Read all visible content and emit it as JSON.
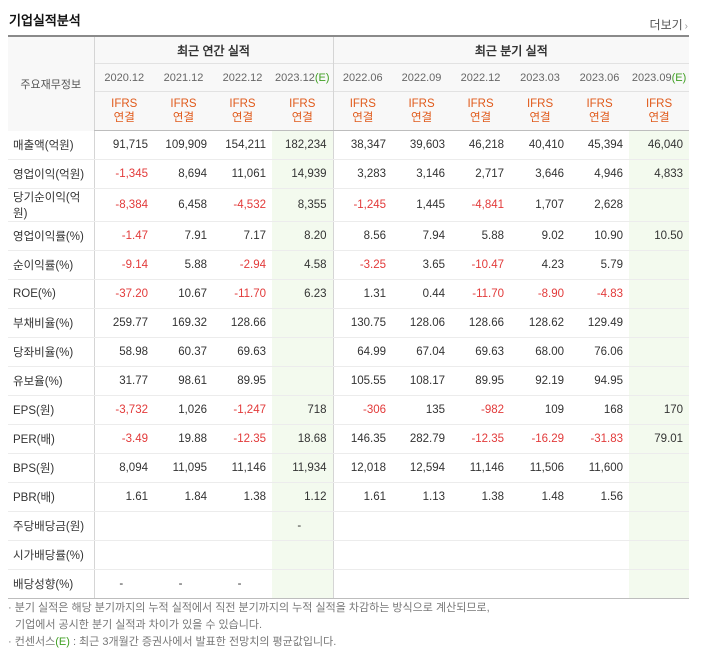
{
  "header": {
    "title": "기업실적분석",
    "more": "더보기"
  },
  "table": {
    "corner_label": "주요재무정보",
    "annual_label": "최근 연간 실적",
    "quarter_label": "최근 분기 실적",
    "estimate_mark": "(E)",
    "columns": [
      {
        "period": "2020.12",
        "std": "IFRS",
        "basis": "연결",
        "est": false
      },
      {
        "period": "2021.12",
        "std": "IFRS",
        "basis": "연결",
        "est": false
      },
      {
        "period": "2022.12",
        "std": "IFRS",
        "basis": "연결",
        "est": false
      },
      {
        "period": "2023.12",
        "std": "IFRS",
        "basis": "연결",
        "est": true
      },
      {
        "period": "2022.06",
        "std": "IFRS",
        "basis": "연결",
        "est": false
      },
      {
        "period": "2022.09",
        "std": "IFRS",
        "basis": "연결",
        "est": false
      },
      {
        "period": "2022.12",
        "std": "IFRS",
        "basis": "연결",
        "est": false
      },
      {
        "period": "2023.03",
        "std": "IFRS",
        "basis": "연결",
        "est": false
      },
      {
        "period": "2023.06",
        "std": "IFRS",
        "basis": "연결",
        "est": false
      },
      {
        "period": "2023.09",
        "std": "IFRS",
        "basis": "연결",
        "est": true
      }
    ],
    "rows": [
      {
        "label": "매출액(억원)",
        "values": [
          "91,715",
          "109,909",
          "154,211",
          "182,234",
          "38,347",
          "39,603",
          "46,218",
          "40,410",
          "45,394",
          "46,040"
        ]
      },
      {
        "label": "영업이익(억원)",
        "values": [
          "-1,345",
          "8,694",
          "11,061",
          "14,939",
          "3,283",
          "3,146",
          "2,717",
          "3,646",
          "4,946",
          "4,833"
        ]
      },
      {
        "label": "당기순이익(억원)",
        "values": [
          "-8,384",
          "6,458",
          "-4,532",
          "8,355",
          "-1,245",
          "1,445",
          "-4,841",
          "1,707",
          "2,628",
          ""
        ]
      },
      {
        "label": "영업이익률(%)",
        "values": [
          "-1.47",
          "7.91",
          "7.17",
          "8.20",
          "8.56",
          "7.94",
          "5.88",
          "9.02",
          "10.90",
          "10.50"
        ]
      },
      {
        "label": "순이익률(%)",
        "values": [
          "-9.14",
          "5.88",
          "-2.94",
          "4.58",
          "-3.25",
          "3.65",
          "-10.47",
          "4.23",
          "5.79",
          ""
        ]
      },
      {
        "label": "ROE(%)",
        "values": [
          "-37.20",
          "10.67",
          "-11.70",
          "6.23",
          "1.31",
          "0.44",
          "-11.70",
          "-8.90",
          "-4.83",
          ""
        ]
      },
      {
        "label": "부채비율(%)",
        "values": [
          "259.77",
          "169.32",
          "128.66",
          "",
          "130.75",
          "128.06",
          "128.66",
          "128.62",
          "129.49",
          ""
        ]
      },
      {
        "label": "당좌비율(%)",
        "values": [
          "58.98",
          "60.37",
          "69.63",
          "",
          "64.99",
          "67.04",
          "69.63",
          "68.00",
          "76.06",
          ""
        ]
      },
      {
        "label": "유보율(%)",
        "values": [
          "31.77",
          "98.61",
          "89.95",
          "",
          "105.55",
          "108.17",
          "89.95",
          "92.19",
          "94.95",
          ""
        ]
      },
      {
        "label": "EPS(원)",
        "values": [
          "-3,732",
          "1,026",
          "-1,247",
          "718",
          "-306",
          "135",
          "-982",
          "109",
          "168",
          "170"
        ]
      },
      {
        "label": "PER(배)",
        "values": [
          "-3.49",
          "19.88",
          "-12.35",
          "18.68",
          "146.35",
          "282.79",
          "-12.35",
          "-16.29",
          "-31.83",
          "79.01"
        ]
      },
      {
        "label": "BPS(원)",
        "values": [
          "8,094",
          "11,095",
          "11,146",
          "11,934",
          "12,018",
          "12,594",
          "11,146",
          "11,506",
          "11,600",
          ""
        ]
      },
      {
        "label": "PBR(배)",
        "values": [
          "1.61",
          "1.84",
          "1.38",
          "1.12",
          "1.61",
          "1.13",
          "1.38",
          "1.48",
          "1.56",
          ""
        ]
      },
      {
        "label": "주당배당금(원)",
        "values": [
          "",
          "",
          "",
          "-",
          "",
          "",
          "",
          "",
          "",
          ""
        ]
      },
      {
        "label": "시가배당률(%)",
        "values": [
          "",
          "",
          "",
          "",
          "",
          "",
          "",
          "",
          "",
          ""
        ]
      },
      {
        "label": "배당성향(%)",
        "values": [
          "-",
          "-",
          "-",
          "",
          "",
          "",
          "",
          "",
          "",
          ""
        ]
      }
    ]
  },
  "notes": {
    "line1": "분기 실적은 해당 분기까지의 누적 실적에서 직전 분기까지의 누적 실적을 차감하는 방식으로 계산되므로,",
    "line2": "기업에서 공시한 분기 실적과 차이가 있을 수 있습니다.",
    "line3_prefix": "컨센서스",
    "line3_mark": "(E)",
    "line3_rest": " : 최근 3개월간 증권사에서 발표한 전망치의 평균값입니다."
  }
}
